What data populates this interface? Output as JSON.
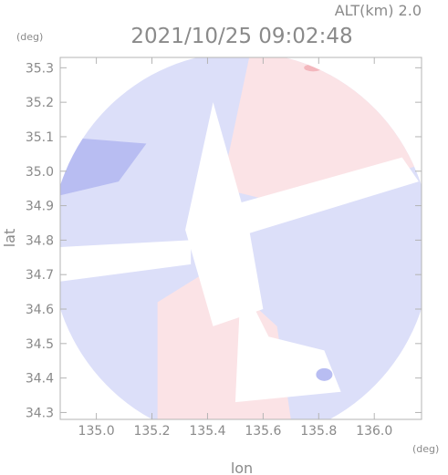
{
  "header": {
    "alt_label": "ALT(km) 2.0",
    "timestamp": "2021/10/25 09:02:48"
  },
  "chart_data": {
    "type": "heatmap",
    "title": "2021/10/25 09:02:48",
    "xlabel": "lon",
    "ylabel": "lat",
    "x_unit": "(deg)",
    "y_unit": "(deg)",
    "xlim": [
      134.87,
      136.17
    ],
    "ylim": [
      34.28,
      35.33
    ],
    "x_ticks": [
      135.0,
      135.2,
      135.4,
      135.6,
      135.8,
      136.0
    ],
    "x_tick_labels": [
      "135.0",
      "135.2",
      "135.4",
      "135.6",
      "135.8",
      "136.0"
    ],
    "y_ticks": [
      34.3,
      34.4,
      34.5,
      34.6,
      34.7,
      34.8,
      34.9,
      35.0,
      35.1,
      35.2,
      35.3
    ],
    "y_tick_labels": [
      "34.3",
      "34.4",
      "34.5",
      "34.6",
      "34.7",
      "34.8",
      "34.9",
      "35.0",
      "35.1",
      "35.2",
      "35.3"
    ],
    "grid": false,
    "radar_coverage": {
      "center": [
        135.52,
        34.78
      ],
      "radius_lon": 0.685,
      "radius_lat": 0.565
    },
    "colors": {
      "background_inside": "#ffffff",
      "approaching": "#dcdff9",
      "approaching_strong": "#b8bdf2",
      "receding": "#fbe3e6",
      "receding_strong": "#f3b7bd",
      "axis": "#b4b4b4",
      "text": "#8a8a8a"
    }
  }
}
